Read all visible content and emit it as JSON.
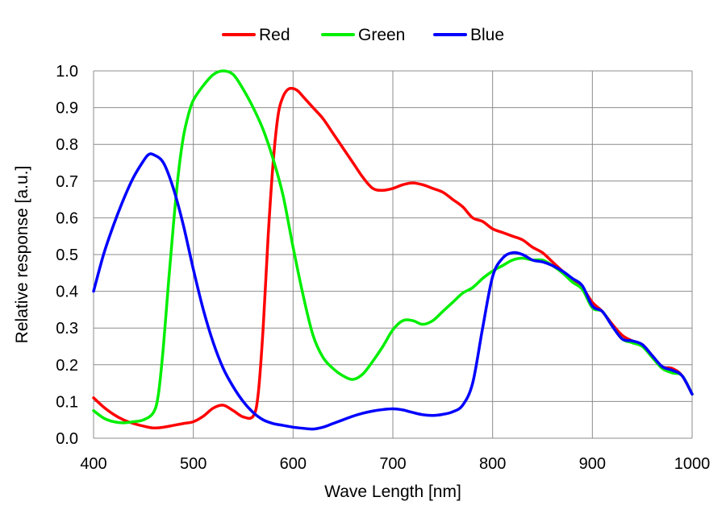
{
  "chart_data": {
    "type": "line",
    "title": "",
    "xlabel": "Wave Length [nm]",
    "ylabel": "Relative response [a.u.]",
    "xlim": [
      400,
      1000
    ],
    "ylim": [
      0,
      1.0
    ],
    "xticks": [
      "400",
      "500",
      "600",
      "700",
      "800",
      "900",
      "1000"
    ],
    "yticks": [
      "0.0",
      "0.1",
      "0.2",
      "0.3",
      "0.4",
      "0.5",
      "0.6",
      "0.7",
      "0.8",
      "0.9",
      "1.0"
    ],
    "grid": true,
    "legend_position": "top",
    "series": [
      {
        "name": "Red",
        "color": "#ff0000",
        "x": [
          400,
          410,
          420,
          430,
          440,
          450,
          460,
          470,
          480,
          490,
          500,
          510,
          520,
          530,
          540,
          550,
          560,
          565,
          570,
          575,
          580,
          585,
          590,
          595,
          600,
          605,
          610,
          620,
          630,
          640,
          650,
          660,
          670,
          680,
          690,
          700,
          710,
          720,
          730,
          740,
          750,
          760,
          770,
          780,
          790,
          800,
          810,
          820,
          830,
          840,
          850,
          860,
          870,
          880,
          890,
          900,
          910,
          920,
          930,
          940,
          950,
          960,
          970,
          980,
          990,
          1000
        ],
        "y": [
          0.11,
          0.085,
          0.065,
          0.05,
          0.04,
          0.033,
          0.028,
          0.03,
          0.035,
          0.04,
          0.045,
          0.06,
          0.082,
          0.09,
          0.075,
          0.058,
          0.06,
          0.12,
          0.3,
          0.55,
          0.75,
          0.88,
          0.93,
          0.95,
          0.952,
          0.945,
          0.93,
          0.9,
          0.87,
          0.83,
          0.79,
          0.75,
          0.71,
          0.68,
          0.675,
          0.68,
          0.69,
          0.695,
          0.69,
          0.68,
          0.67,
          0.65,
          0.63,
          0.6,
          0.59,
          0.57,
          0.56,
          0.55,
          0.54,
          0.52,
          0.505,
          0.48,
          0.455,
          0.43,
          0.41,
          0.37,
          0.345,
          0.31,
          0.28,
          0.265,
          0.255,
          0.225,
          0.195,
          0.19,
          0.17,
          0.12
        ]
      },
      {
        "name": "Green",
        "color": "#00ee00",
        "x": [
          400,
          410,
          420,
          430,
          440,
          450,
          460,
          465,
          470,
          475,
          480,
          485,
          490,
          495,
          500,
          510,
          520,
          530,
          540,
          550,
          560,
          570,
          580,
          590,
          600,
          610,
          620,
          630,
          640,
          650,
          660,
          670,
          680,
          690,
          700,
          710,
          720,
          730,
          740,
          750,
          760,
          770,
          780,
          790,
          800,
          810,
          820,
          830,
          840,
          850,
          860,
          870,
          880,
          890,
          900,
          910,
          920,
          930,
          940,
          950,
          960,
          970,
          980,
          990,
          1000
        ],
        "y": [
          0.075,
          0.055,
          0.045,
          0.042,
          0.045,
          0.05,
          0.07,
          0.12,
          0.25,
          0.42,
          0.58,
          0.72,
          0.82,
          0.88,
          0.92,
          0.96,
          0.99,
          1.0,
          0.99,
          0.95,
          0.9,
          0.84,
          0.76,
          0.66,
          0.52,
          0.39,
          0.28,
          0.22,
          0.19,
          0.17,
          0.16,
          0.175,
          0.21,
          0.25,
          0.295,
          0.32,
          0.32,
          0.31,
          0.32,
          0.345,
          0.37,
          0.395,
          0.41,
          0.435,
          0.455,
          0.47,
          0.485,
          0.49,
          0.485,
          0.485,
          0.47,
          0.45,
          0.425,
          0.405,
          0.355,
          0.345,
          0.305,
          0.27,
          0.26,
          0.25,
          0.22,
          0.19,
          0.178,
          0.17,
          0.12
        ]
      },
      {
        "name": "Blue",
        "color": "#0000ff",
        "x": [
          400,
          410,
          420,
          430,
          440,
          450,
          455,
          460,
          470,
          480,
          490,
          500,
          510,
          520,
          530,
          540,
          550,
          560,
          570,
          580,
          590,
          600,
          610,
          620,
          630,
          640,
          650,
          660,
          670,
          680,
          690,
          700,
          710,
          720,
          730,
          740,
          750,
          760,
          770,
          780,
          790,
          800,
          810,
          820,
          830,
          840,
          850,
          860,
          870,
          880,
          890,
          900,
          910,
          920,
          930,
          940,
          950,
          960,
          970,
          980,
          990,
          1000
        ],
        "y": [
          0.4,
          0.5,
          0.58,
          0.65,
          0.71,
          0.755,
          0.772,
          0.772,
          0.75,
          0.68,
          0.58,
          0.46,
          0.35,
          0.26,
          0.19,
          0.14,
          0.1,
          0.07,
          0.05,
          0.04,
          0.035,
          0.03,
          0.027,
          0.025,
          0.03,
          0.04,
          0.05,
          0.06,
          0.068,
          0.074,
          0.078,
          0.08,
          0.077,
          0.07,
          0.064,
          0.062,
          0.065,
          0.072,
          0.09,
          0.15,
          0.3,
          0.44,
          0.49,
          0.505,
          0.5,
          0.485,
          0.48,
          0.47,
          0.455,
          0.435,
          0.415,
          0.36,
          0.345,
          0.305,
          0.27,
          0.265,
          0.255,
          0.225,
          0.195,
          0.185,
          0.17,
          0.12
        ]
      }
    ]
  }
}
